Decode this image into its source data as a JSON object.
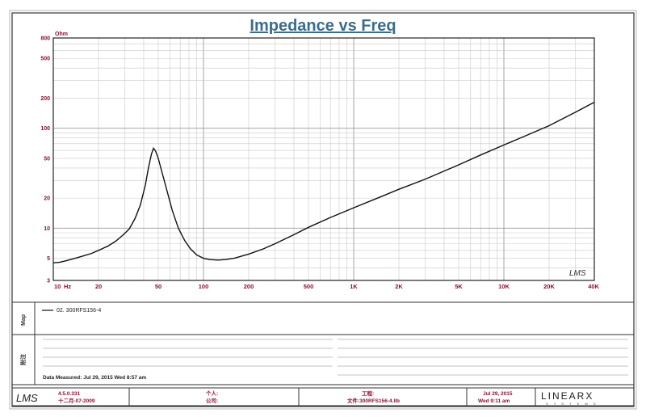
{
  "chart_data": {
    "type": "line",
    "title": "Impedance vs Freq",
    "ylabel_unit": "Ohm",
    "x_scale": "log",
    "y_scale": "log",
    "xlim": [
      10,
      40000
    ],
    "ylim": [
      3,
      800
    ],
    "grid": true,
    "x_ticks": [
      {
        "value": 10,
        "label": "10"
      },
      {
        "value": 20,
        "label": "20"
      },
      {
        "value": 50,
        "label": "50"
      },
      {
        "value": 100,
        "label": "100"
      },
      {
        "value": 200,
        "label": "200"
      },
      {
        "value": 500,
        "label": "500"
      },
      {
        "value": 1000,
        "label": "1K"
      },
      {
        "value": 2000,
        "label": "2K"
      },
      {
        "value": 5000,
        "label": "5K"
      },
      {
        "value": 10000,
        "label": "10K"
      },
      {
        "value": 20000,
        "label": "20K"
      },
      {
        "value": 40000,
        "label": "40K"
      }
    ],
    "x_unit": "Hz",
    "y_ticks": [
      {
        "value": 800,
        "label": "800"
      },
      {
        "value": 500,
        "label": "500"
      },
      {
        "value": 200,
        "label": "200"
      },
      {
        "value": 100,
        "label": "100"
      },
      {
        "value": 50,
        "label": "50"
      },
      {
        "value": 20,
        "label": "20"
      },
      {
        "value": 10,
        "label": "10"
      },
      {
        "value": 5,
        "label": "5"
      },
      {
        "value": 3,
        "label": "3"
      }
    ],
    "series": [
      {
        "name": "02. 300RFS156-4",
        "color": "#111111",
        "points": [
          [
            10,
            4.5
          ],
          [
            11,
            4.55
          ],
          [
            12,
            4.7
          ],
          [
            14,
            5.0
          ],
          [
            16,
            5.3
          ],
          [
            18,
            5.6
          ],
          [
            20,
            6.0
          ],
          [
            23,
            6.6
          ],
          [
            26,
            7.4
          ],
          [
            29,
            8.5
          ],
          [
            32,
            9.8
          ],
          [
            35,
            12.5
          ],
          [
            38,
            17
          ],
          [
            41,
            27
          ],
          [
            43,
            40
          ],
          [
            45,
            55
          ],
          [
            46.5,
            63
          ],
          [
            48,
            59
          ],
          [
            50,
            50
          ],
          [
            53,
            36
          ],
          [
            57,
            24
          ],
          [
            62,
            15
          ],
          [
            68,
            10
          ],
          [
            75,
            7.5
          ],
          [
            82,
            6.2
          ],
          [
            90,
            5.4
          ],
          [
            100,
            5.0
          ],
          [
            110,
            4.85
          ],
          [
            125,
            4.8
          ],
          [
            140,
            4.85
          ],
          [
            160,
            5.0
          ],
          [
            200,
            5.5
          ],
          [
            250,
            6.2
          ],
          [
            300,
            7.0
          ],
          [
            400,
            8.6
          ],
          [
            500,
            10.2
          ],
          [
            700,
            12.8
          ],
          [
            1000,
            16
          ],
          [
            1500,
            20.5
          ],
          [
            2000,
            24.5
          ],
          [
            3000,
            31
          ],
          [
            5000,
            43
          ],
          [
            7000,
            54
          ],
          [
            10000,
            68
          ],
          [
            15000,
            88
          ],
          [
            20000,
            106
          ],
          [
            30000,
            145
          ],
          [
            40000,
            182
          ]
        ]
      }
    ],
    "legend": {
      "entries": [
        "02. 300RFS156-4"
      ],
      "placement": "legend panel below chart"
    },
    "watermark_logo": "LMS"
  },
  "info_panel": {
    "map_label": "Map",
    "notes_label": "附注",
    "data_measured": "Data Measured: Jul 29, 2015 Wed 8:57 am"
  },
  "footer": {
    "logo": "LMS",
    "version": "4.5.0.331",
    "version_date": "十二月-07-2009",
    "person_label": "个人:",
    "company_label": "公司:",
    "project_label": "工程:",
    "file_label": "文件:300RFS156-4.llb",
    "date": "Jul 29, 2015",
    "day_time": "Wed 9:11 am",
    "brand": "LINEARX",
    "brand_sub": "S Y S T E M S"
  }
}
